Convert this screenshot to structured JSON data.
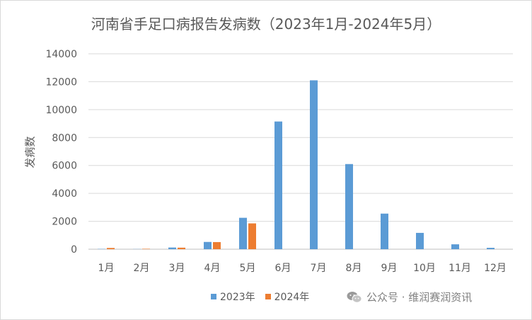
{
  "chart_data": {
    "type": "bar",
    "title": "河南省手足口病报告发病数（2023年1月-2024年5月）",
    "ylabel": "发病数",
    "xlabel": "",
    "categories": [
      "1月",
      "2月",
      "3月",
      "4月",
      "5月",
      "6月",
      "7月",
      "8月",
      "9月",
      "10月",
      "11月",
      "12月"
    ],
    "ylim": [
      0,
      14000
    ],
    "yticks": [
      0,
      2000,
      4000,
      6000,
      8000,
      10000,
      12000,
      14000
    ],
    "grid": true,
    "legend_position": "bottom",
    "series": [
      {
        "name": "2023年",
        "color": "#5b9bd5",
        "values": [
          20,
          10,
          120,
          520,
          2250,
          9150,
          12100,
          6100,
          2550,
          1170,
          350,
          100
        ]
      },
      {
        "name": "2024年",
        "color": "#ed7d31",
        "values": [
          90,
          30,
          110,
          510,
          1850,
          null,
          null,
          null,
          null,
          null,
          null,
          null
        ]
      }
    ]
  },
  "watermark": {
    "text": "公众号 · 维润赛润资讯",
    "icon": "wechat-icon"
  }
}
